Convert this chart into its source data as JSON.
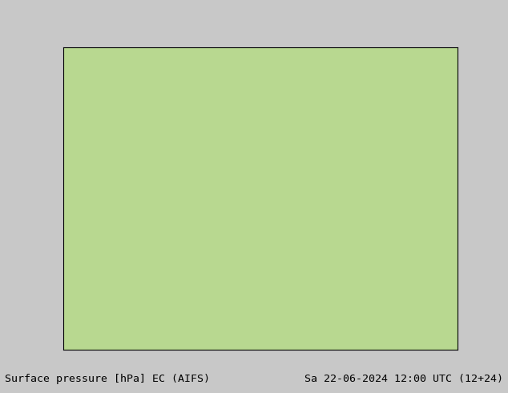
{
  "title_left": "Surface pressure [hPa] EC (AIFS)",
  "title_right": "Sa 22-06-2024 12:00 UTC (12+24)",
  "land_color": "#b8d890",
  "ocean_color": "#d8d8d8",
  "lake_color": "#c0c0c0",
  "border_color": "#808080",
  "mountain_shade_color": "#c8b890",
  "coast_color": "#606060",
  "state_border_color": "#909090",
  "country_border_color": "#606060",
  "isobar_color_low": "#0000cc",
  "isobar_color_high": "#cc0000",
  "isobar_color_black": "#000000",
  "isobar_lw_low": 0.9,
  "isobar_lw_high": 0.9,
  "isobar_lw_black": 1.3,
  "label_fontsize": 5.5,
  "title_fontsize": 9.5,
  "figsize": [
    6.34,
    4.9
  ],
  "dpi": 100,
  "bottom_bar_color": "#cccccc",
  "text_color": "#000000",
  "map_extent": [
    -136,
    -60,
    18,
    57
  ],
  "red_area_color": "#dd2222",
  "pressure_base": 1015.0
}
